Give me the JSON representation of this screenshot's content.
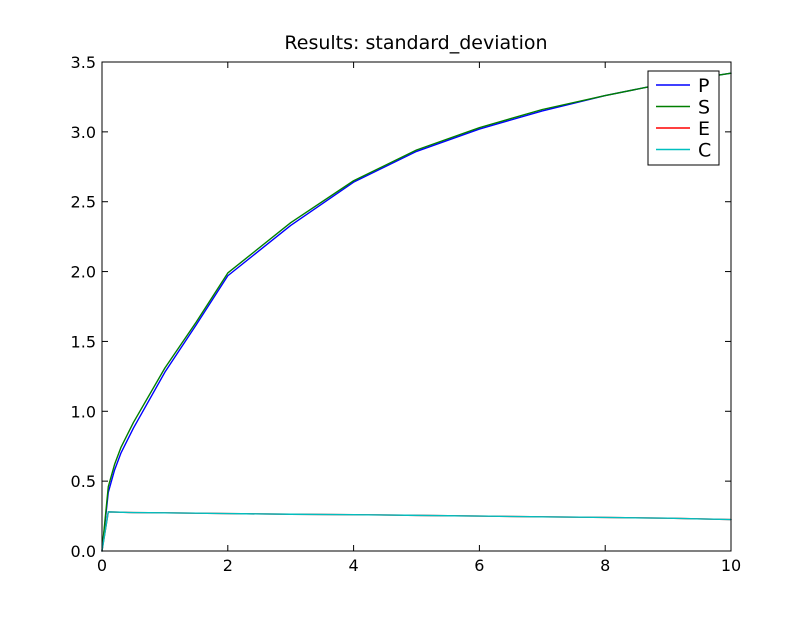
{
  "chart_data": {
    "type": "line",
    "title": "Results: standard_deviation",
    "xlabel": "",
    "ylabel": "",
    "xlim": [
      0,
      10
    ],
    "ylim": [
      0,
      3.5
    ],
    "xticks": [
      0,
      2,
      4,
      6,
      8,
      10
    ],
    "xtick_labels": [
      "0",
      "2",
      "4",
      "6",
      "8",
      "10"
    ],
    "yticks": [
      0.0,
      0.5,
      1.0,
      1.5,
      2.0,
      2.5,
      3.0,
      3.5
    ],
    "ytick_labels": [
      "0.0",
      "0.5",
      "1.0",
      "1.5",
      "2.0",
      "2.5",
      "3.0",
      "3.5"
    ],
    "grid": false,
    "legend_position": "top-right",
    "series": [
      {
        "name": "P",
        "color": "#0000ff",
        "x": [
          0,
          0.1,
          0.2,
          0.3,
          0.5,
          1,
          1.5,
          2,
          3,
          4,
          5,
          6,
          7,
          8,
          9,
          10
        ],
        "y": [
          0.0,
          0.42,
          0.58,
          0.7,
          0.88,
          1.28,
          1.62,
          1.97,
          2.33,
          2.64,
          2.86,
          3.02,
          3.15,
          3.26,
          3.35,
          3.42
        ]
      },
      {
        "name": "S",
        "color": "#007f00",
        "x": [
          0,
          0.1,
          0.2,
          0.3,
          0.5,
          1,
          1.5,
          2,
          3,
          4,
          5,
          6,
          7,
          8,
          9,
          10
        ],
        "y": [
          0.0,
          0.46,
          0.62,
          0.74,
          0.92,
          1.31,
          1.64,
          1.99,
          2.35,
          2.65,
          2.87,
          3.03,
          3.16,
          3.26,
          3.35,
          3.42
        ]
      },
      {
        "name": "E",
        "color": "#ff0000",
        "x": [
          0,
          0.1,
          0.5,
          1,
          2,
          3,
          4,
          5,
          6,
          7,
          8,
          9,
          10
        ],
        "y": [
          0.0,
          0.28,
          0.275,
          0.273,
          0.268,
          0.263,
          0.26,
          0.255,
          0.25,
          0.245,
          0.24,
          0.235,
          0.225
        ]
      },
      {
        "name": "C",
        "color": "#00bfbf",
        "x": [
          0,
          0.1,
          0.5,
          1,
          2,
          3,
          4,
          5,
          6,
          7,
          8,
          9,
          10
        ],
        "y": [
          0.0,
          0.28,
          0.275,
          0.273,
          0.268,
          0.263,
          0.26,
          0.255,
          0.25,
          0.245,
          0.24,
          0.235,
          0.225
        ]
      }
    ]
  }
}
